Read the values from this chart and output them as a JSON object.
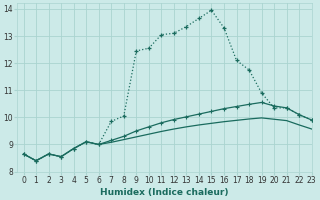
{
  "xlabel": "Humidex (Indice chaleur)",
  "bg_color": "#cceae8",
  "grid_color": "#aad4d0",
  "line_color": "#1a6b5e",
  "xlim": [
    -0.5,
    23
  ],
  "ylim": [
    8,
    14.2
  ],
  "xticks": [
    0,
    1,
    2,
    3,
    4,
    5,
    6,
    7,
    8,
    9,
    10,
    11,
    12,
    13,
    14,
    15,
    16,
    17,
    18,
    19,
    20,
    21,
    22,
    23
  ],
  "yticks": [
    8,
    9,
    10,
    11,
    12,
    13,
    14
  ],
  "line1_x": [
    0,
    1,
    2,
    3,
    4,
    5,
    6,
    7,
    8,
    9,
    10,
    11,
    12,
    13,
    14,
    15,
    16,
    17,
    18,
    19,
    20,
    21,
    22,
    23
  ],
  "line1_y": [
    8.65,
    8.4,
    8.65,
    8.55,
    8.85,
    9.1,
    9.0,
    9.85,
    10.05,
    12.45,
    12.55,
    13.05,
    13.1,
    13.35,
    13.65,
    13.95,
    13.3,
    12.1,
    11.75,
    10.9,
    10.35,
    10.35,
    10.1,
    9.9
  ],
  "line2_x": [
    0,
    1,
    2,
    3,
    4,
    5,
    6,
    7,
    8,
    9,
    10,
    11,
    12,
    13,
    14,
    15,
    16,
    17,
    18,
    19,
    20,
    21,
    22,
    23
  ],
  "line2_y": [
    8.65,
    8.4,
    8.65,
    8.55,
    8.85,
    9.1,
    9.0,
    9.15,
    9.3,
    9.5,
    9.65,
    9.8,
    9.92,
    10.02,
    10.12,
    10.22,
    10.32,
    10.4,
    10.48,
    10.55,
    10.42,
    10.35,
    10.1,
    9.9
  ],
  "line3_x": [
    0,
    1,
    2,
    3,
    4,
    5,
    6,
    7,
    8,
    9,
    10,
    11,
    12,
    13,
    14,
    15,
    16,
    17,
    18,
    19,
    20,
    21,
    22,
    23
  ],
  "line3_y": [
    8.65,
    8.4,
    8.65,
    8.55,
    8.85,
    9.1,
    9.0,
    9.08,
    9.18,
    9.28,
    9.38,
    9.48,
    9.57,
    9.65,
    9.72,
    9.78,
    9.84,
    9.89,
    9.94,
    9.98,
    9.93,
    9.88,
    9.72,
    9.57
  ],
  "xlabel_fontsize": 6.5,
  "tick_fontsize": 5.5
}
